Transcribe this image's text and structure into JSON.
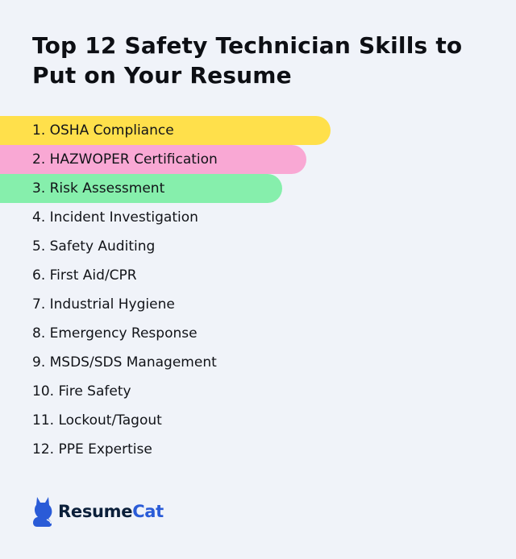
{
  "title": "Top 12 Safety Technician Skills to Put on Your Resume",
  "skills": [
    {
      "label": "1. OSHA Compliance",
      "highlight": "#ffe04b"
    },
    {
      "label": "2. HAZWOPER Certification",
      "highlight": "#f9a8d4"
    },
    {
      "label": "3. Risk Assessment",
      "highlight": "#86efac"
    },
    {
      "label": "4. Incident Investigation"
    },
    {
      "label": "5. Safety Auditing"
    },
    {
      "label": "6. First Aid/CPR"
    },
    {
      "label": "7. Industrial Hygiene"
    },
    {
      "label": "8. Emergency Response"
    },
    {
      "label": "9. MSDS/SDS Management"
    },
    {
      "label": "10. Fire Safety"
    },
    {
      "label": "11. Lockout/Tagout"
    },
    {
      "label": "12. PPE Expertise"
    }
  ],
  "brand": {
    "name_part1": "Resume",
    "name_part2": "Cat",
    "icon": "cat-icon",
    "color": "#2a5bd7"
  }
}
